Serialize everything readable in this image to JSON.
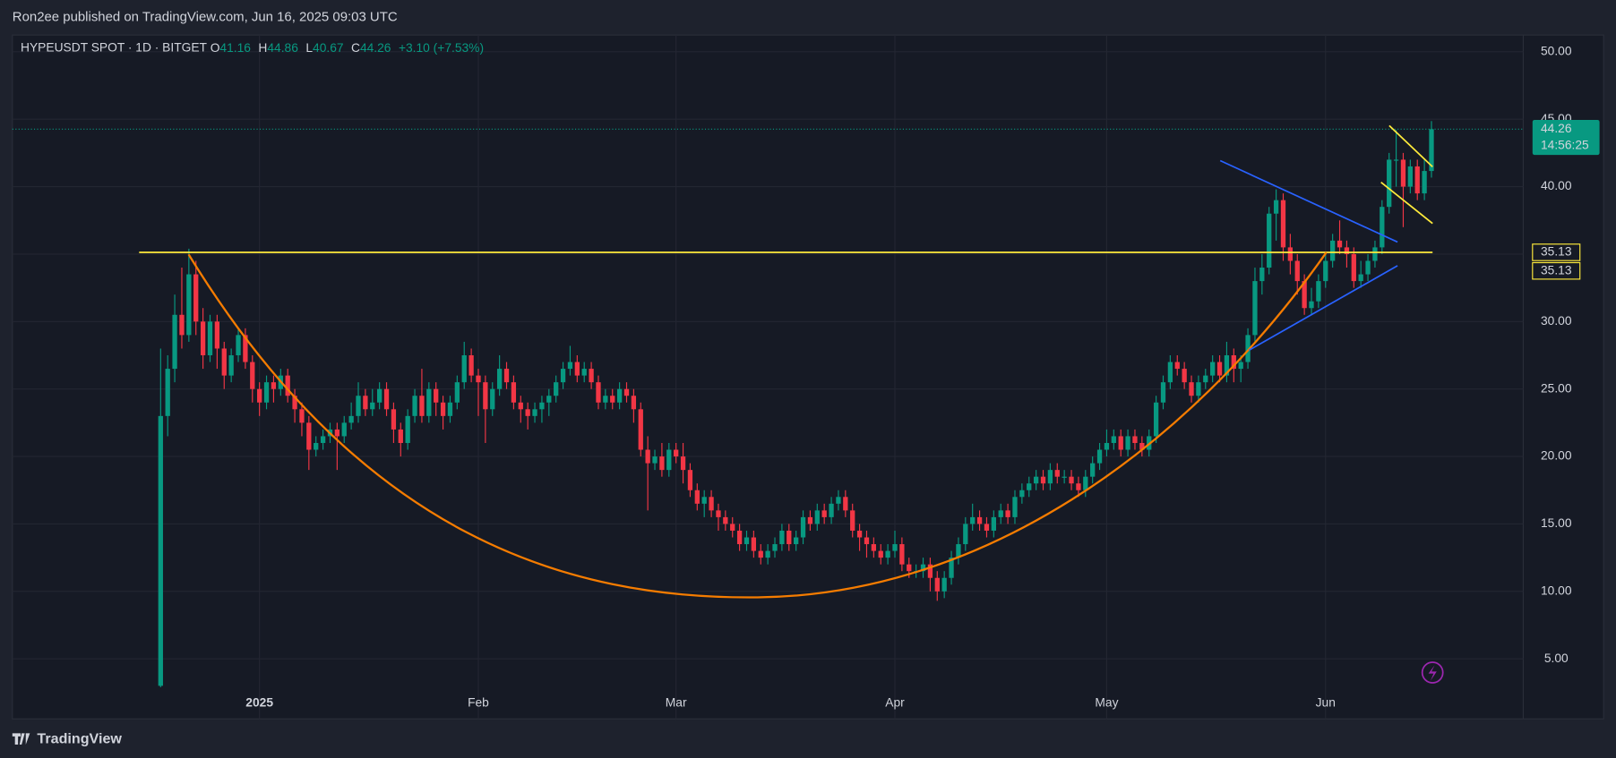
{
  "header": {
    "text": "Ron2ee published on TradingView.com, Jun 16, 2025 09:03 UTC"
  },
  "footer": {
    "text": "TradingView"
  },
  "chart_data": {
    "type": "candlestick",
    "title": "HYPEUSDT SPOT · 1D · BITGET",
    "legend": {
      "o": "O",
      "h": "H",
      "l": "L",
      "c": "C",
      "change": "+3.10 (+7.53%)"
    },
    "up_color": "#089981",
    "down_color": "#f23645",
    "open": [
      3.0,
      23.0,
      26.5,
      30.5,
      29.0,
      33.5,
      30.0,
      27.5,
      30.0,
      28.0,
      26.0,
      27.5,
      29.0,
      27.0,
      25.0,
      24.0,
      25.5,
      25.0,
      26.0,
      24.5,
      23.5,
      22.5,
      20.5,
      21.0,
      21.5,
      22.0,
      21.5,
      22.5,
      23.0,
      24.5,
      23.5,
      24.0,
      25.0,
      23.5,
      22.0,
      21.0,
      23.0,
      24.5,
      23.0,
      25.0,
      24.0,
      23.0,
      24.0,
      25.5,
      27.5,
      26.0,
      25.5,
      23.5,
      25.0,
      26.5,
      25.5,
      24.0,
      23.5,
      23.0,
      23.5,
      24.0,
      24.5,
      25.5,
      26.5,
      27.0,
      26.0,
      26.5,
      25.5,
      24.0,
      24.5,
      24.0,
      25.0,
      24.5,
      23.5,
      20.5,
      19.5,
      20.0,
      19.0,
      20.5,
      20.0,
      19.0,
      17.5,
      16.5,
      17.0,
      16.0,
      15.5,
      15.0,
      14.5,
      13.5,
      14.0,
      13.0,
      12.5,
      13.0,
      13.5,
      14.5,
      13.5,
      14.0,
      15.5,
      15.0,
      16.0,
      15.5,
      16.5,
      17.0,
      16.0,
      14.5,
      14.0,
      13.5,
      13.0,
      12.5,
      13.0,
      13.5,
      12.0,
      11.5,
      11.5,
      12.0,
      11.0,
      10.0,
      11.0,
      12.5,
      13.5,
      15.0,
      15.5,
      15.0,
      14.5,
      15.5,
      16.0,
      15.5,
      17.0,
      17.5,
      18.0,
      18.5,
      18.0,
      19.0,
      18.5,
      18.5,
      18.0,
      17.5,
      18.5,
      19.5,
      20.5,
      21.0,
      21.5,
      20.5,
      21.5,
      21.0,
      20.5,
      21.5,
      24.0,
      25.5,
      27.0,
      26.5,
      25.5,
      24.5,
      25.5,
      26.0,
      27.0,
      26.0,
      27.5,
      26.5,
      27.0,
      29.0,
      33.0,
      34.0,
      38.0,
      39.0,
      35.5,
      34.5,
      33.0,
      31.0,
      31.5,
      33.0,
      34.5,
      36.0,
      35.5,
      35.0,
      33.0,
      33.5,
      34.5,
      35.5,
      38.5,
      42.0,
      42.0,
      40.0,
      41.5,
      39.5,
      41.16
    ],
    "high": [
      28.0,
      27.5,
      32.0,
      34.0,
      35.4,
      34.5,
      31.0,
      30.5,
      30.5,
      28.5,
      28.0,
      29.5,
      29.5,
      27.5,
      25.5,
      26.0,
      26.0,
      26.5,
      26.5,
      25.0,
      24.0,
      23.0,
      21.5,
      22.0,
      22.5,
      22.5,
      23.0,
      24.0,
      25.5,
      25.0,
      25.0,
      25.5,
      25.5,
      24.0,
      22.5,
      23.5,
      25.0,
      26.5,
      25.5,
      25.5,
      24.5,
      24.5,
      26.0,
      28.5,
      28.0,
      26.5,
      26.0,
      25.5,
      27.5,
      27.0,
      26.0,
      24.5,
      24.0,
      24.0,
      24.5,
      25.0,
      26.0,
      27.0,
      28.2,
      27.5,
      27.0,
      27.0,
      26.0,
      25.0,
      25.0,
      25.5,
      25.5,
      25.0,
      24.0,
      21.5,
      20.5,
      21.0,
      21.0,
      21.0,
      21.0,
      19.5,
      18.0,
      17.5,
      17.5,
      16.5,
      16.0,
      15.5,
      15.0,
      14.5,
      14.5,
      13.5,
      13.5,
      14.0,
      15.0,
      15.0,
      14.5,
      16.0,
      16.0,
      16.5,
      16.5,
      17.0,
      17.5,
      17.5,
      16.5,
      15.0,
      14.5,
      14.0,
      13.5,
      13.5,
      14.5,
      14.0,
      12.5,
      12.0,
      12.5,
      12.5,
      11.5,
      11.5,
      13.0,
      14.0,
      15.5,
      16.5,
      16.0,
      15.5,
      16.0,
      16.5,
      16.5,
      17.5,
      18.0,
      18.5,
      19.0,
      19.0,
      19.5,
      19.5,
      19.0,
      19.0,
      18.5,
      19.0,
      20.0,
      21.0,
      22.0,
      22.0,
      22.0,
      22.0,
      22.0,
      21.5,
      22.0,
      24.5,
      26.0,
      27.5,
      27.5,
      27.0,
      26.0,
      26.0,
      26.5,
      27.5,
      27.5,
      28.5,
      28.0,
      27.5,
      29.5,
      34.0,
      35.0,
      38.5,
      39.8,
      39.5,
      36.5,
      35.0,
      33.5,
      32.5,
      33.5,
      35.0,
      36.5,
      37.5,
      36.0,
      35.5,
      34.5,
      35.0,
      36.0,
      39.0,
      42.5,
      44.2,
      42.5,
      42.0,
      42.0,
      42.0,
      44.86
    ],
    "low": [
      2.9,
      21.5,
      25.5,
      28.0,
      28.5,
      29.0,
      26.5,
      27.0,
      26.5,
      25.0,
      25.5,
      27.0,
      26.5,
      24.0,
      23.0,
      23.5,
      24.0,
      24.5,
      24.0,
      22.5,
      21.5,
      19.0,
      20.0,
      20.5,
      21.0,
      19.0,
      21.0,
      22.0,
      22.5,
      23.0,
      23.0,
      23.5,
      23.0,
      21.0,
      20.0,
      20.5,
      22.5,
      22.5,
      22.5,
      23.0,
      22.0,
      22.5,
      23.5,
      25.0,
      25.5,
      23.0,
      21.0,
      23.0,
      24.5,
      25.0,
      23.5,
      22.5,
      22.0,
      22.5,
      22.5,
      23.0,
      24.0,
      25.0,
      26.0,
      25.5,
      25.5,
      25.0,
      23.5,
      23.5,
      23.5,
      23.5,
      24.0,
      22.5,
      20.0,
      16.0,
      19.0,
      18.5,
      18.5,
      19.5,
      18.0,
      17.0,
      16.0,
      15.5,
      15.5,
      14.5,
      14.5,
      14.0,
      13.0,
      13.0,
      12.5,
      12.0,
      12.0,
      12.5,
      13.0,
      13.0,
      13.0,
      13.5,
      14.5,
      14.5,
      15.0,
      15.0,
      16.0,
      15.5,
      14.0,
      13.0,
      12.5,
      12.5,
      12.0,
      12.0,
      12.5,
      11.5,
      11.0,
      11.0,
      11.0,
      10.0,
      9.3,
      9.5,
      10.5,
      12.0,
      13.0,
      14.5,
      14.5,
      14.0,
      14.0,
      15.0,
      15.0,
      15.0,
      16.5,
      17.0,
      17.5,
      17.5,
      17.5,
      18.0,
      18.0,
      17.5,
      17.0,
      17.0,
      18.0,
      19.0,
      20.0,
      20.5,
      20.0,
      20.0,
      20.5,
      20.0,
      20.0,
      21.0,
      23.5,
      25.0,
      26.0,
      25.0,
      24.0,
      24.0,
      25.0,
      25.5,
      25.5,
      25.5,
      25.5,
      25.5,
      26.5,
      28.5,
      32.0,
      33.5,
      36.0,
      34.5,
      33.5,
      32.0,
      30.5,
      30.5,
      31.0,
      32.5,
      34.0,
      35.0,
      34.0,
      32.5,
      32.5,
      33.0,
      34.0,
      35.0,
      38.0,
      40.0,
      37.0,
      39.5,
      39.0,
      39.0,
      40.67
    ],
    "close": [
      23.0,
      26.5,
      30.5,
      29.0,
      33.5,
      30.0,
      27.5,
      30.0,
      28.0,
      26.0,
      27.5,
      29.0,
      27.0,
      25.0,
      24.0,
      25.5,
      25.0,
      26.0,
      24.5,
      23.5,
      22.5,
      20.5,
      21.0,
      21.5,
      22.0,
      21.5,
      22.5,
      23.0,
      24.5,
      23.5,
      24.0,
      25.0,
      23.5,
      22.0,
      21.0,
      23.0,
      24.5,
      23.0,
      25.0,
      24.0,
      23.0,
      24.0,
      25.5,
      27.5,
      26.0,
      25.5,
      23.5,
      25.0,
      26.5,
      25.5,
      24.0,
      23.5,
      23.0,
      23.5,
      24.0,
      24.5,
      25.5,
      26.5,
      27.0,
      26.0,
      26.5,
      25.5,
      24.0,
      24.5,
      24.0,
      25.0,
      24.5,
      23.5,
      20.5,
      19.5,
      20.0,
      19.0,
      20.5,
      20.0,
      19.0,
      17.5,
      16.5,
      17.0,
      16.0,
      15.5,
      15.0,
      14.5,
      13.5,
      14.0,
      13.0,
      12.5,
      13.0,
      13.5,
      14.5,
      13.5,
      14.0,
      15.5,
      15.0,
      16.0,
      15.5,
      16.5,
      17.0,
      16.0,
      14.5,
      14.0,
      13.5,
      13.0,
      12.5,
      13.0,
      13.5,
      12.0,
      11.5,
      11.5,
      12.0,
      11.0,
      10.0,
      11.0,
      12.5,
      13.5,
      15.0,
      15.5,
      15.0,
      14.5,
      15.5,
      16.0,
      15.5,
      17.0,
      17.5,
      18.0,
      18.5,
      18.0,
      19.0,
      18.5,
      18.5,
      18.0,
      17.5,
      18.5,
      19.5,
      20.5,
      21.0,
      21.5,
      20.5,
      21.5,
      21.0,
      20.5,
      21.5,
      24.0,
      25.5,
      27.0,
      26.5,
      25.5,
      24.5,
      25.5,
      26.0,
      27.0,
      26.0,
      27.5,
      26.5,
      27.0,
      29.0,
      33.0,
      34.0,
      38.0,
      39.0,
      35.5,
      34.5,
      33.0,
      31.0,
      31.5,
      33.0,
      34.5,
      36.0,
      35.5,
      35.0,
      33.0,
      33.5,
      34.5,
      35.5,
      38.5,
      42.0,
      42.0,
      40.0,
      41.5,
      39.5,
      41.16,
      44.26
    ],
    "xlim": [
      -21,
      193
    ],
    "xticks": [
      {
        "value": 14,
        "label": "2025"
      },
      {
        "value": 45,
        "label": "Feb"
      },
      {
        "value": 73,
        "label": "Mar"
      },
      {
        "value": 104,
        "label": "Apr"
      },
      {
        "value": 134,
        "label": "May"
      },
      {
        "value": 165,
        "label": "Jun"
      }
    ],
    "ylim": [
      0.55,
      51.24
    ],
    "yticks": [
      {
        "value": 5,
        "label": "5.00"
      },
      {
        "value": 10,
        "label": "10.00"
      },
      {
        "value": 15,
        "label": "15.00"
      },
      {
        "value": 20,
        "label": "20.00"
      },
      {
        "value": 25,
        "label": "25.00"
      },
      {
        "value": 30,
        "label": "30.00"
      },
      {
        "value": 35,
        "label": "35.00"
      },
      {
        "value": 40,
        "label": "40.00"
      },
      {
        "value": 45,
        "label": "45.00"
      },
      {
        "value": 50,
        "label": "50.00"
      }
    ],
    "grid": true,
    "hline": {
      "value": 35.13,
      "color": "#ffeb3b"
    },
    "countdown": "14:56:25"
  }
}
